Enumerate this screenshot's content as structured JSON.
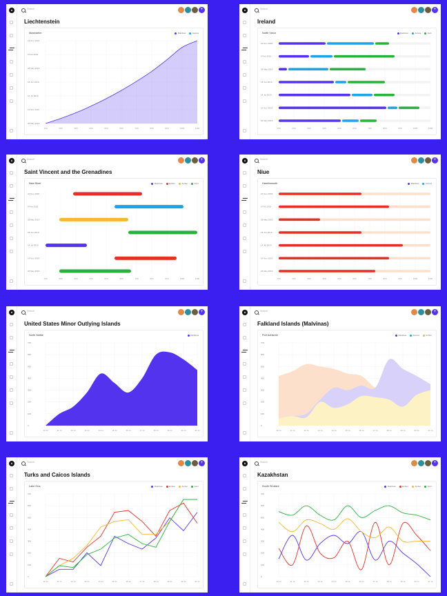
{
  "colors": {
    "Rainbow": "#5433ee",
    "Aurora": "#1fa3e8",
    "Ember": "#e53027",
    "Amber": "#f5b82e",
    "Fern": "#27b23a",
    "Peach": "#fde0cc",
    "Lilac": "#d8d2fb",
    "Cream": "#fdf2c4"
  },
  "panels": [
    {
      "id": "liechtenstein",
      "title": "Liechtenstein",
      "card_title": "Mzonsteim",
      "legend": [
        "Rainbow",
        "Aurora"
      ],
      "chart_data": {
        "type": "area",
        "y_labels": [
          "22 Nov 2018",
          "9 Feb 2019",
          "28 May 2019",
          "18 Jun 2019",
          "14 Jul 2019",
          "14 Nov 2019",
          "04 May 2019"
        ],
        "x_labels": [
          "100",
          "200",
          "300",
          "400",
          "500",
          "600",
          "700",
          "800",
          "900",
          "1000",
          "1100"
        ],
        "series": [
          {
            "name": "Rainbow",
            "values": [
              0,
              6,
              13,
              21,
              30,
              40,
              51,
              63,
              77,
              92,
              100
            ]
          }
        ],
        "ylim": [
          0,
          100
        ]
      }
    },
    {
      "id": "ireland",
      "title": "Ireland",
      "card_title": "North Victor",
      "legend": [
        "Rainbow",
        "Aurora",
        "Fern"
      ],
      "chart_data": {
        "type": "bar",
        "stacked": true,
        "orientation": "horizontal",
        "categories": [
          "22 Nov 2018",
          "9 Feb 2019",
          "28 May 2019",
          "18 Jun 2019",
          "14 Jul 2019",
          "14 Nov 2019",
          "04 May 2019"
        ],
        "x_labels": [
          "100",
          "200",
          "300",
          "400",
          "500",
          "600",
          "700",
          "800",
          "900",
          "1000",
          "1100"
        ],
        "series": [
          {
            "name": "Rainbow",
            "values": [
              340,
              220,
              60,
              400,
              520,
              780,
              450
            ]
          },
          {
            "name": "Aurora",
            "values": [
              350,
              170,
              300,
              90,
              160,
              80,
              130
            ]
          },
          {
            "name": "Fern",
            "values": [
              110,
              450,
              270,
              280,
              160,
              160,
              130
            ]
          }
        ],
        "xlim": [
          0,
          1100
        ]
      }
    },
    {
      "id": "svg_grenadines",
      "title": "Saint Vincent and the Grenadines",
      "card_title": "New Stoel",
      "legend": [
        "Rainbow",
        "Ember",
        "Amber",
        "Fern"
      ],
      "chart_data": {
        "type": "bar",
        "orientation": "horizontal",
        "floating": true,
        "categories": [
          "22 Nov 2018",
          "9 Feb 2019",
          "28 May 2019",
          "18 Jun 2019",
          "14 Jul 2019",
          "14 Nov 2019",
          "04 May 2019"
        ],
        "x_labels": [
          "100",
          "200",
          "300",
          "400",
          "500",
          "600",
          "700",
          "800",
          "900",
          "1000",
          "1100"
        ],
        "ranges": [
          {
            "name": "Ember",
            "start": 200,
            "end": 700
          },
          {
            "name": "Aurora",
            "start": 500,
            "end": 1000
          },
          {
            "name": "Amber",
            "start": 100,
            "end": 600
          },
          {
            "name": "Fern",
            "start": 600,
            "end": 1100
          },
          {
            "name": "Rainbow",
            "start": 0,
            "end": 300
          },
          {
            "name": "Ember",
            "start": 500,
            "end": 950
          },
          {
            "name": "Fern",
            "start": 100,
            "end": 620
          }
        ],
        "xlim": [
          0,
          1100
        ]
      }
    },
    {
      "id": "niue",
      "title": "Niue",
      "card_title": "Hamlinmouth",
      "legend": [
        "Rainbow",
        "Aurora"
      ],
      "chart_data": {
        "type": "bar",
        "orientation": "horizontal",
        "categories": [
          "22 Nov 2018",
          "9 Feb 2019",
          "28 May 2019",
          "18 Jun 2019",
          "14 Jul 2019",
          "14 Nov 2019",
          "04 May 2019"
        ],
        "x_labels": [
          "100",
          "200",
          "300",
          "400",
          "500",
          "600",
          "700",
          "800",
          "900",
          "1000",
          "1100"
        ],
        "series": [
          {
            "name": "Ember",
            "values": [
              600,
              800,
              300,
              600,
              900,
              800,
              700
            ]
          }
        ],
        "xlim": [
          0,
          1100
        ]
      }
    },
    {
      "id": "usmoi",
      "title": "United States Minor Outlying Islands",
      "card_title": "North Mattie",
      "legend": [
        "Rainbow"
      ],
      "chart_data": {
        "type": "area",
        "y_labels": [
          "700",
          "600",
          "500",
          "400",
          "300",
          "200",
          "100",
          "0"
        ],
        "x_labels": [
          "10 Ju",
          "11 Ju",
          "12 Ju",
          "13 Ju",
          "14 Ju",
          "15 Ju",
          "16 Ju",
          "17 Ju",
          "18 Ju",
          "19 Ju",
          "20 Ju",
          "21 Ju"
        ],
        "series": [
          {
            "name": "Rainbow",
            "values": [
              0,
              100,
              160,
              280,
              440,
              360,
              280,
              400,
              600,
              620,
              560,
              470
            ]
          }
        ],
        "ylim": [
          0,
          700
        ]
      }
    },
    {
      "id": "falklands",
      "title": "Falkland Islands (Malvinas)",
      "card_title": "Port Adrianne",
      "legend": [
        "Rainbow",
        "Aurora",
        "Amber"
      ],
      "chart_data": {
        "type": "area",
        "y_labels": [
          "700",
          "600",
          "500",
          "400",
          "300",
          "200",
          "100",
          "0"
        ],
        "x_labels": [
          "10 Ju",
          "11 Ju",
          "12 Ju",
          "13 Ju",
          "14 Ju",
          "15 Ju",
          "16 Ju",
          "17 Ju",
          "18 Ju",
          "19 Ju",
          "20 Ju",
          "21 Ju"
        ],
        "series": [
          {
            "name": "Peach",
            "values": [
              420,
              460,
              520,
              500,
              480,
              440,
              420,
              320,
              280,
              260,
              220,
              200
            ]
          },
          {
            "name": "Lilac",
            "values": [
              60,
              80,
              100,
              220,
              320,
              300,
              340,
              320,
              560,
              480,
              420,
              350
            ]
          },
          {
            "name": "Cream",
            "values": [
              60,
              80,
              70,
              200,
              150,
              180,
              250,
              240,
              220,
              160,
              260,
              300
            ]
          }
        ],
        "ylim": [
          0,
          700
        ]
      }
    },
    {
      "id": "turks",
      "title": "Turks and Caicos Islands",
      "card_title": "Lake Ona",
      "legend": [
        "Rainbow",
        "Ember",
        "Amber",
        "Fern"
      ],
      "chart_data": {
        "type": "line",
        "y_labels": [
          "700",
          "600",
          "500",
          "400",
          "300",
          "200",
          "100",
          "0"
        ],
        "x_labels": [
          "10 Ju",
          "11 Ju",
          "12 Ju",
          "13 Ju",
          "14 Ju",
          "15 Ju",
          "16 Ju",
          "17 Ju",
          "18 Ju",
          "19 Ju",
          "20 Ju",
          "21 Ju"
        ],
        "series": [
          {
            "name": "Rainbow",
            "values": [
              0,
              40,
              40,
              130,
              60,
              220,
              180,
              150,
              210,
              320,
              250,
              350
            ]
          },
          {
            "name": "Ember",
            "values": [
              0,
              100,
              80,
              160,
              220,
              350,
              360,
              300,
              220,
              360,
              400,
              290
            ]
          },
          {
            "name": "Amber",
            "values": [
              0,
              60,
              100,
              170,
              270,
              300,
              310,
              230,
              230,
              300,
              420,
              420
            ]
          },
          {
            "name": "Fern",
            "values": [
              0,
              60,
              50,
              120,
              150,
              210,
              230,
              180,
              160,
              300,
              420,
              420
            ]
          }
        ],
        "ylim": [
          0,
          450
        ]
      }
    },
    {
      "id": "kazakhstan",
      "title": "Kazakhstan",
      "card_title": "South Sk'afant",
      "legend": [
        "Rainbow",
        "Ember",
        "Amber",
        "Fern"
      ],
      "chart_data": {
        "type": "line",
        "y_labels": [
          "700",
          "600",
          "500",
          "400",
          "300",
          "200",
          "100",
          "0"
        ],
        "x_labels": [
          "10 Ju",
          "11 Ju",
          "12 Ju",
          "13 Ju",
          "14 Ju",
          "15 Ju",
          "16 Ju",
          "17 Ju",
          "18 Ju",
          "19 Ju",
          "20 Ju",
          "21 Ju"
        ],
        "series": [
          {
            "name": "Rainbow",
            "values": [
              150,
              350,
              140,
              280,
              350,
              280,
              380,
              140,
              300,
              200,
              110,
              0
            ]
          },
          {
            "name": "Ember",
            "values": [
              240,
              100,
              430,
              200,
              160,
              300,
              60,
              460,
              100,
              450,
              350,
              220
            ]
          },
          {
            "name": "Amber",
            "values": [
              460,
              380,
              480,
              450,
              400,
              490,
              380,
              330,
              420,
              300,
              300,
              300
            ]
          },
          {
            "name": "Fern",
            "values": [
              550,
              520,
              600,
              520,
              480,
              600,
              500,
              560,
              600,
              540,
              520,
              480
            ]
          }
        ],
        "ylim": [
          0,
          700
        ]
      }
    }
  ],
  "search_label": "Search"
}
